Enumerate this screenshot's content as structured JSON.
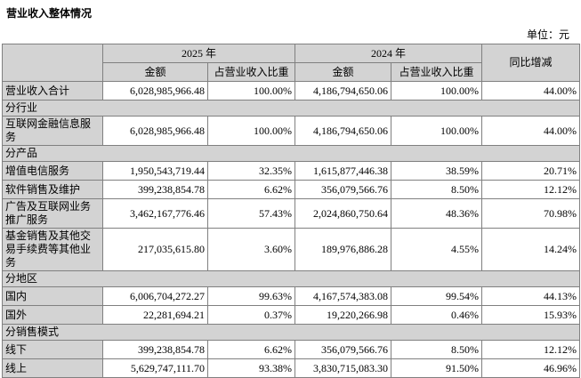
{
  "page": {
    "title": "营业收入整体情况",
    "unit_label": "单位：元"
  },
  "colors": {
    "cell_shade": "#d3d3d3",
    "border": "#808080",
    "text": "#000000",
    "background": "#ffffff"
  },
  "table": {
    "header": {
      "year_2025": "2025 年",
      "year_2024": "2024 年",
      "yoy": "同比增减",
      "amount": "金额",
      "proportion": "占营业收入比重"
    },
    "rows": [
      {
        "type": "data",
        "label": "营业收入合计",
        "amount_2025": "6,028,985,966.48",
        "pct_2025": "100.00%",
        "amount_2024": "4,186,794,650.06",
        "pct_2024": "100.00%",
        "yoy": "44.00%",
        "pct_shaded": true
      },
      {
        "type": "section",
        "label": "分行业"
      },
      {
        "type": "data",
        "label": "互联网金融信息服务",
        "amount_2025": "6,028,985,966.48",
        "pct_2025": "100.00%",
        "amount_2024": "4,186,794,650.06",
        "pct_2024": "100.00%",
        "yoy": "44.00%",
        "pct_shaded": false
      },
      {
        "type": "section",
        "label": "分产品"
      },
      {
        "type": "data",
        "label": "增值电信服务",
        "amount_2025": "1,950,543,719.44",
        "pct_2025": "32.35%",
        "amount_2024": "1,615,877,446.38",
        "pct_2024": "38.59%",
        "yoy": "20.71%",
        "pct_shaded": false
      },
      {
        "type": "data",
        "label": "软件销售及维护",
        "amount_2025": "399,238,854.78",
        "pct_2025": "6.62%",
        "amount_2024": "356,079,566.76",
        "pct_2024": "8.50%",
        "yoy": "12.12%",
        "pct_shaded": false
      },
      {
        "type": "data",
        "label": "广告及互联网业务推广服务",
        "amount_2025": "3,462,167,776.46",
        "pct_2025": "57.43%",
        "amount_2024": "2,024,860,750.64",
        "pct_2024": "48.36%",
        "yoy": "70.98%",
        "pct_shaded": false
      },
      {
        "type": "data",
        "label": "基金销售及其他交易手续费等其他业务",
        "amount_2025": "217,035,615.80",
        "pct_2025": "3.60%",
        "amount_2024": "189,976,886.28",
        "pct_2024": "4.55%",
        "yoy": "14.24%",
        "pct_shaded": false
      },
      {
        "type": "section",
        "label": "分地区"
      },
      {
        "type": "data",
        "label": "国内",
        "amount_2025": "6,006,704,272.27",
        "pct_2025": "99.63%",
        "amount_2024": "4,167,574,383.08",
        "pct_2024": "99.54%",
        "yoy": "44.13%",
        "pct_shaded": false
      },
      {
        "type": "data",
        "label": "国外",
        "amount_2025": "22,281,694.21",
        "pct_2025": "0.37%",
        "amount_2024": "19,220,266.98",
        "pct_2024": "0.46%",
        "yoy": "15.93%",
        "pct_shaded": false
      },
      {
        "type": "section",
        "label": "分销售模式"
      },
      {
        "type": "data",
        "label": "线下",
        "amount_2025": "399,238,854.78",
        "pct_2025": "6.62%",
        "amount_2024": "356,079,566.76",
        "pct_2024": "8.50%",
        "yoy": "12.12%",
        "pct_shaded": false
      },
      {
        "type": "data",
        "label": "线上",
        "amount_2025": "5,629,747,111.70",
        "pct_2025": "93.38%",
        "amount_2024": "3,830,715,083.30",
        "pct_2024": "91.50%",
        "yoy": "46.96%",
        "pct_shaded": false
      }
    ]
  }
}
